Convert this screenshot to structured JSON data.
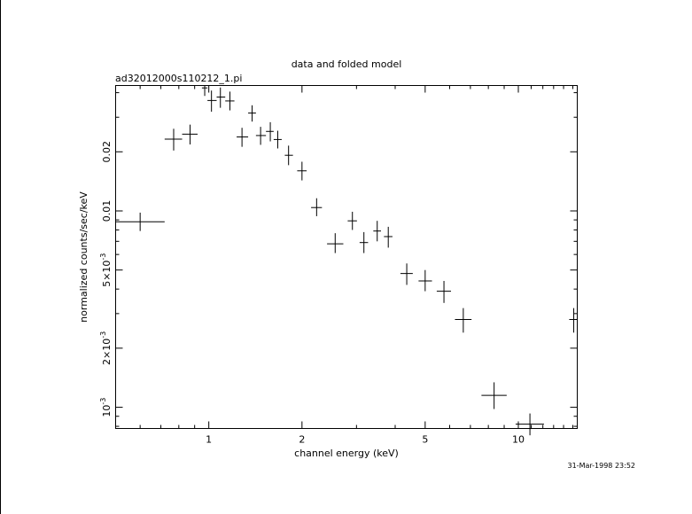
{
  "page": {
    "timestamp": "31-Mar-1998 23:52"
  },
  "chart_data": {
    "type": "scatter",
    "title": "data and folded model",
    "subtitle": "ad32012000s110212_1.pi",
    "xlabel": "channel energy (keV)",
    "ylabel": "normalized counts/sec/keV",
    "xscale": "log",
    "yscale": "log",
    "xlim": [
      0.5,
      15.5
    ],
    "ylim": [
      0.00078,
      0.0435
    ],
    "grid": false,
    "x_ticks": [
      {
        "value": 1,
        "label": "1"
      },
      {
        "value": 2,
        "label": "2"
      },
      {
        "value": 5,
        "label": "5"
      },
      {
        "value": 10,
        "label": "10"
      }
    ],
    "y_ticks": [
      {
        "value": 0.001,
        "base": "10",
        "exp": "-3",
        "label": "10^-3"
      },
      {
        "value": 0.002,
        "mant": "2×10",
        "exp": "-3",
        "label": "2×10^-3"
      },
      {
        "value": 0.005,
        "mant": "5×10",
        "exp": "-3",
        "label": "5×10^-3"
      },
      {
        "value": 0.01,
        "label": "0.01"
      },
      {
        "value": 0.02,
        "label": "0.02"
      }
    ],
    "points": [
      {
        "x": 0.6,
        "xlo": 0.5,
        "xhi": 0.72,
        "y": 0.0088,
        "ylo": 0.0079,
        "yhi": 0.0098
      },
      {
        "x": 0.77,
        "xlo": 0.72,
        "xhi": 0.82,
        "y": 0.0232,
        "ylo": 0.0203,
        "yhi": 0.0262
      },
      {
        "x": 0.87,
        "xlo": 0.82,
        "xhi": 0.92,
        "y": 0.0246,
        "ylo": 0.0218,
        "yhi": 0.0275
      },
      {
        "x": 0.97,
        "xlo": 0.95,
        "xhi": 0.99,
        "y": 0.0423,
        "ylo": 0.0385,
        "yhi": 0.0435
      },
      {
        "x": 1.02,
        "xlo": 0.99,
        "xhi": 1.06,
        "y": 0.0365,
        "ylo": 0.032,
        "yhi": 0.041
      },
      {
        "x": 1.09,
        "xlo": 1.06,
        "xhi": 1.13,
        "y": 0.038,
        "ylo": 0.0335,
        "yhi": 0.0425
      },
      {
        "x": 1.17,
        "xlo": 1.13,
        "xhi": 1.21,
        "y": 0.0363,
        "ylo": 0.0325,
        "yhi": 0.0405
      },
      {
        "x": 1.28,
        "xlo": 1.23,
        "xhi": 1.34,
        "y": 0.0238,
        "ylo": 0.0212,
        "yhi": 0.0265
      },
      {
        "x": 1.38,
        "xlo": 1.34,
        "xhi": 1.42,
        "y": 0.0315,
        "ylo": 0.0285,
        "yhi": 0.0345
      },
      {
        "x": 1.47,
        "xlo": 1.42,
        "xhi": 1.53,
        "y": 0.0242,
        "ylo": 0.0217,
        "yhi": 0.0268
      },
      {
        "x": 1.58,
        "xlo": 1.53,
        "xhi": 1.62,
        "y": 0.0254,
        "ylo": 0.0226,
        "yhi": 0.0283
      },
      {
        "x": 1.67,
        "xlo": 1.62,
        "xhi": 1.72,
        "y": 0.0231,
        "ylo": 0.0208,
        "yhi": 0.0256
      },
      {
        "x": 1.81,
        "xlo": 1.76,
        "xhi": 1.87,
        "y": 0.0192,
        "ylo": 0.0171,
        "yhi": 0.0215
      },
      {
        "x": 2.0,
        "xlo": 1.93,
        "xhi": 2.07,
        "y": 0.016,
        "ylo": 0.0143,
        "yhi": 0.0178
      },
      {
        "x": 2.23,
        "xlo": 2.14,
        "xhi": 2.32,
        "y": 0.0104,
        "ylo": 0.0094,
        "yhi": 0.0116
      },
      {
        "x": 2.56,
        "xlo": 2.41,
        "xhi": 2.72,
        "y": 0.0068,
        "ylo": 0.0061,
        "yhi": 0.0077
      },
      {
        "x": 2.91,
        "xlo": 2.81,
        "xhi": 3.01,
        "y": 0.0089,
        "ylo": 0.008,
        "yhi": 0.0099
      },
      {
        "x": 3.17,
        "xlo": 3.07,
        "xhi": 3.27,
        "y": 0.0069,
        "ylo": 0.0061,
        "yhi": 0.0078
      },
      {
        "x": 3.5,
        "xlo": 3.4,
        "xhi": 3.6,
        "y": 0.0079,
        "ylo": 0.007,
        "yhi": 0.0089
      },
      {
        "x": 3.8,
        "xlo": 3.68,
        "xhi": 3.92,
        "y": 0.0074,
        "ylo": 0.0065,
        "yhi": 0.0083
      },
      {
        "x": 4.36,
        "xlo": 4.16,
        "xhi": 4.56,
        "y": 0.0048,
        "ylo": 0.0042,
        "yhi": 0.0054
      },
      {
        "x": 5.0,
        "xlo": 4.76,
        "xhi": 5.26,
        "y": 0.0044,
        "ylo": 0.0039,
        "yhi": 0.005
      },
      {
        "x": 5.75,
        "xlo": 5.45,
        "xhi": 6.06,
        "y": 0.0039,
        "ylo": 0.0034,
        "yhi": 0.0044
      },
      {
        "x": 6.64,
        "xlo": 6.24,
        "xhi": 7.06,
        "y": 0.0028,
        "ylo": 0.0024,
        "yhi": 0.0032
      },
      {
        "x": 8.35,
        "xlo": 7.6,
        "xhi": 9.17,
        "y": 0.00115,
        "ylo": 0.00098,
        "yhi": 0.00134
      },
      {
        "x": 10.9,
        "xlo": 9.8,
        "xhi": 12.1,
        "y": 0.00082,
        "ylo": 0.00072,
        "yhi": 0.00093
      },
      {
        "x": 15.1,
        "xlo": 14.6,
        "xhi": 15.5,
        "y": 0.0028,
        "ylo": 0.0024,
        "yhi": 0.0032
      }
    ]
  }
}
